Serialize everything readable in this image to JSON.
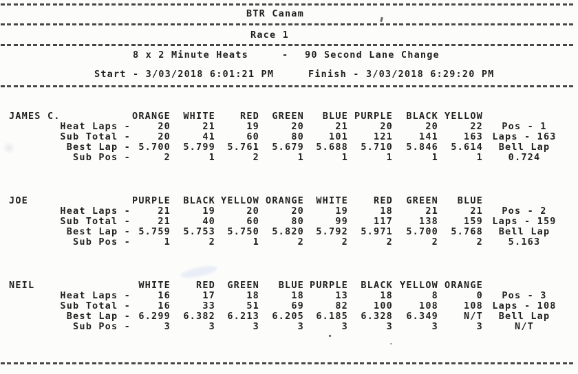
{
  "header": {
    "title": "BTR Canam",
    "race": "Race 1",
    "format": {
      "heats": "8 x 2 Minute Heats",
      "separator": "-",
      "lane_change": "90 Second Lane Change"
    },
    "start": "Start - 3/03/2018 6:01:21 PM",
    "finish": "Finish - 3/03/2018 6:29:20 PM"
  },
  "table": {
    "row_labels": [
      "Heat Laps -",
      "Sub Total -",
      "Best Lap -",
      "Sub Pos -"
    ]
  },
  "drivers": [
    {
      "name": "JAMES C.",
      "lanes": [
        "ORANGE",
        "WHITE",
        "RED",
        "GREEN",
        "BLUE",
        "PURPLE",
        "BLACK",
        "YELLOW"
      ],
      "heat_laps": [
        "20",
        "21",
        "19",
        "20",
        "21",
        "20",
        "20",
        "22"
      ],
      "sub_total": [
        "20",
        "41",
        "60",
        "80",
        "101",
        "121",
        "141",
        "163"
      ],
      "best_lap": [
        "5.700",
        "5.799",
        "5.761",
        "5.679",
        "5.688",
        "5.710",
        "5.846",
        "5.614"
      ],
      "sub_pos": [
        "2",
        "1",
        "2",
        "1",
        "1",
        "1",
        "1",
        "1"
      ],
      "summary": {
        "pos": "Pos - 1",
        "laps": "Laps - 163",
        "bell_label": "Bell Lap",
        "bell_value": "0.724"
      }
    },
    {
      "name": "JOE",
      "lanes": [
        "PURPLE",
        "BLACK",
        "YELLOW",
        "ORANGE",
        "WHITE",
        "RED",
        "GREEN",
        "BLUE"
      ],
      "heat_laps": [
        "21",
        "19",
        "20",
        "20",
        "19",
        "18",
        "21",
        "21"
      ],
      "sub_total": [
        "21",
        "40",
        "60",
        "80",
        "99",
        "117",
        "138",
        "159"
      ],
      "best_lap": [
        "5.759",
        "5.753",
        "5.750",
        "5.820",
        "5.792",
        "5.971",
        "5.700",
        "5.768"
      ],
      "sub_pos": [
        "1",
        "2",
        "1",
        "2",
        "2",
        "2",
        "2",
        "2"
      ],
      "summary": {
        "pos": "Pos - 2",
        "laps": "Laps - 159",
        "bell_label": "Bell Lap",
        "bell_value": "5.163"
      }
    },
    {
      "name": "NEIL",
      "lanes": [
        "WHITE",
        "RED",
        "GREEN",
        "BLUE",
        "PURPLE",
        "BLACK",
        "YELLOW",
        "ORANGE"
      ],
      "heat_laps": [
        "16",
        "17",
        "18",
        "18",
        "13",
        "18",
        "8",
        "0"
      ],
      "sub_total": [
        "16",
        "33",
        "51",
        "69",
        "82",
        "100",
        "108",
        "108"
      ],
      "best_lap": [
        "6.299",
        "6.382",
        "6.213",
        "6.205",
        "6.185",
        "6.328",
        "6.349",
        "N/T"
      ],
      "sub_pos": [
        "3",
        "3",
        "3",
        "3",
        "3",
        "3",
        "3",
        "3"
      ],
      "summary": {
        "pos": "Pos - 3",
        "laps": "Laps - 108",
        "bell_label": "Bell Lap",
        "bell_value": "N/T"
      }
    }
  ],
  "colors": {
    "ink": "#212121",
    "paper": "#fcfcfb"
  }
}
